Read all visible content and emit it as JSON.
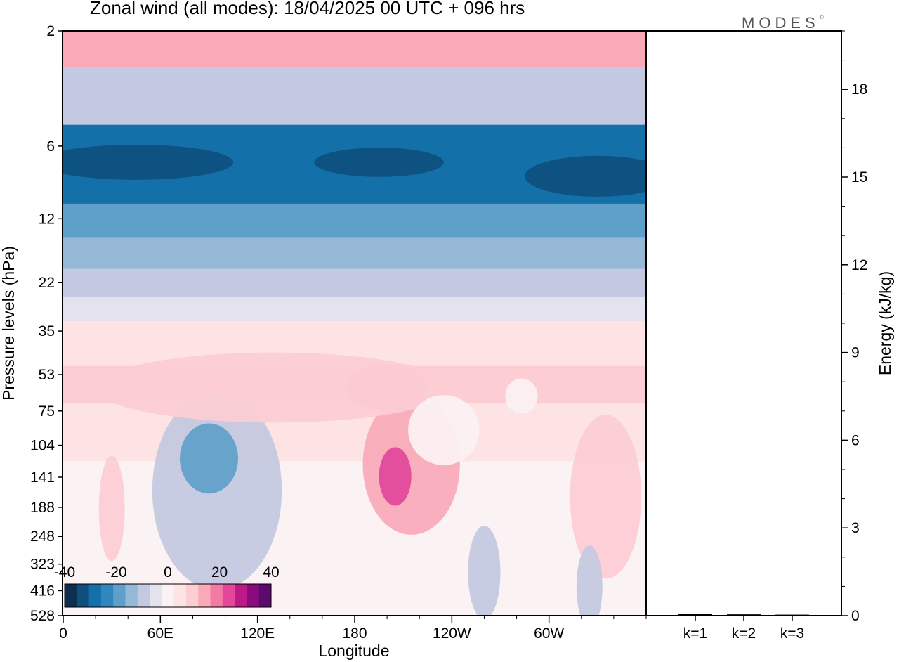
{
  "title": "Zonal wind (all modes):  18/04/2025  00 UTC  + 096 hrs",
  "brand": "MODES",
  "brand_mark": "©",
  "chart_data": [
    {
      "type": "heatmap",
      "title": "Zonal wind (all modes):  18/04/2025  00 UTC  + 096 hrs",
      "xlabel": "Longitude",
      "ylabel": "Pressure levels (hPa)",
      "x_ticks": [
        "0",
        "60E",
        "120E",
        "180",
        "120W",
        "60W"
      ],
      "x_tick_degrees": [
        0,
        60,
        120,
        180,
        240,
        300
      ],
      "xlim": [
        0,
        360
      ],
      "y_ticks": [
        "2",
        "6",
        "12",
        "22",
        "35",
        "53",
        "75",
        "104",
        "141",
        "188",
        "248",
        "323",
        "416",
        "528"
      ],
      "y_scale": "log",
      "colorbar": {
        "tick_labels": [
          "-40",
          "-20",
          "0",
          "20",
          "40"
        ],
        "range": [
          -40,
          40
        ],
        "levels": 16,
        "placement": "bottom-left",
        "colors": [
          "#0d2f4f",
          "#0e4f7e",
          "#1370a8",
          "#3187bd",
          "#5ea0c9",
          "#94b8d6",
          "#c3c9e0",
          "#e4e2ef",
          "#fbf2f4",
          "#fde3e4",
          "#fccdd2",
          "#f9a9b8",
          "#f47aa6",
          "#e2479a",
          "#bd1a88",
          "#8b0a7e",
          "#5c0a6e"
        ]
      },
      "zonal_mean_profile_ms": {
        "2": 15,
        "4": -10,
        "6": -32,
        "9": -30,
        "12": -22,
        "17": -16,
        "22": -8,
        "29": -4,
        "35": 3,
        "45": 7,
        "53": 9,
        "65": 9,
        "75": 7,
        "104": 3,
        "141": 2,
        "188": 1,
        "248": 1,
        "323": 0,
        "416": 0,
        "528": 0
      }
    },
    {
      "type": "bar",
      "ylabel": "Energy (kJ/kg)",
      "categories": [
        "k=1",
        "k=2",
        "k=3"
      ],
      "values": [
        0.03,
        0.02,
        0.01
      ],
      "ylim": [
        0,
        20
      ],
      "y_ticks": [
        "0",
        "3",
        "6",
        "9",
        "12",
        "15",
        "18"
      ]
    }
  ]
}
